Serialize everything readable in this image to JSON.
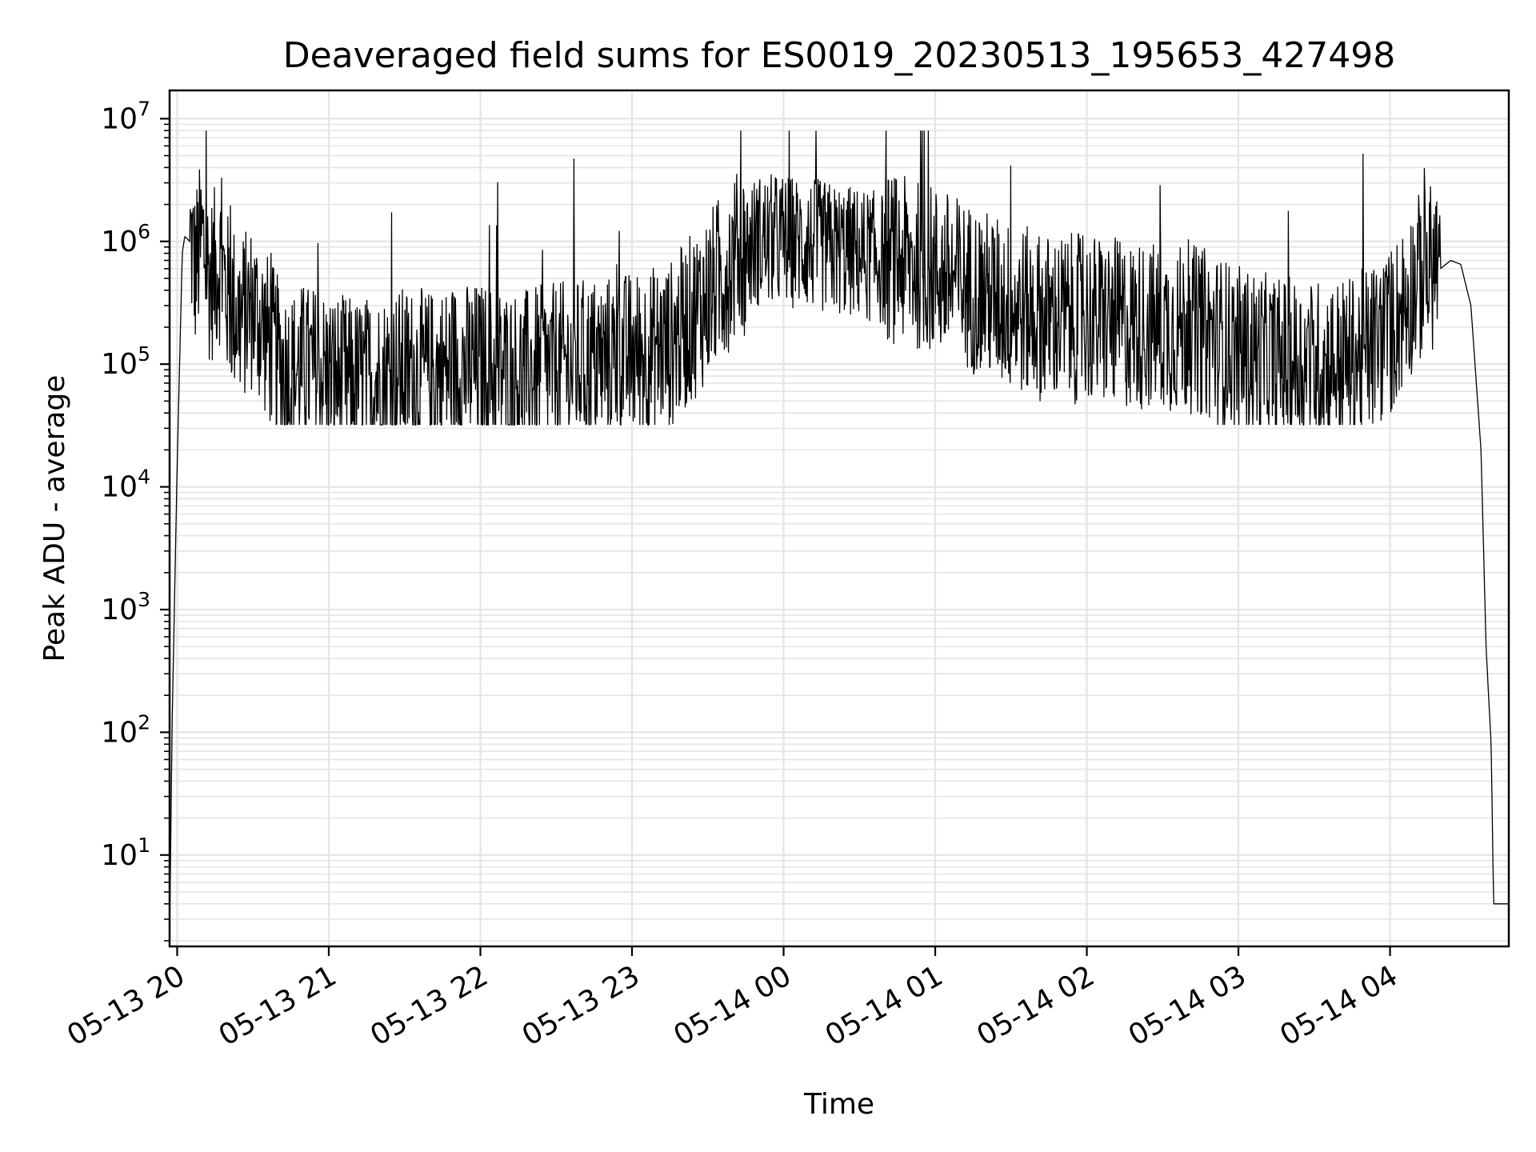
{
  "chart_data": {
    "type": "line",
    "title": "Deaveraged field sums for ES0019_20230513_195653_427498",
    "xlabel": "Time",
    "ylabel": "Peak ADU - average",
    "yscale": "log",
    "ylim": [
      1.8,
      17000000
    ],
    "xlim": [
      "2023-05-13 19:57",
      "2023-05-14 04:47"
    ],
    "grid": true,
    "line_color": "#000000",
    "x_ticks": [
      "05-13 20",
      "05-13 21",
      "05-13 22",
      "05-13 23",
      "05-14 00",
      "05-14 01",
      "05-14 02",
      "05-14 03",
      "05-14 04"
    ],
    "y_ticks": [
      {
        "base": "10",
        "exp": "1"
      },
      {
        "base": "10",
        "exp": "2"
      },
      {
        "base": "10",
        "exp": "3"
      },
      {
        "base": "10",
        "exp": "4"
      },
      {
        "base": "10",
        "exp": "5"
      },
      {
        "base": "10",
        "exp": "6"
      },
      {
        "base": "10",
        "exp": "7"
      }
    ],
    "series": [
      {
        "values_note_free": true,
        "x": [
          "2023-05-13 19:57",
          "2023-05-13 19:58",
          "2023-05-13 20:00",
          "2023-05-13 20:02",
          "2023-05-13 20:03",
          "2023-05-13 20:05",
          "2023-05-13 20:07",
          "2023-05-13 20:10",
          "2023-05-13 20:13",
          "2023-05-13 20:17",
          "2023-05-13 20:20",
          "2023-05-13 20:25",
          "2023-05-13 20:30",
          "2023-05-13 20:35",
          "2023-05-13 20:40",
          "2023-05-13 20:45",
          "2023-05-13 20:50",
          "2023-05-13 21:00",
          "2023-05-13 21:10",
          "2023-05-13 21:20",
          "2023-05-13 21:30",
          "2023-05-13 21:40",
          "2023-05-13 21:50",
          "2023-05-13 22:00",
          "2023-05-13 22:15",
          "2023-05-13 22:30",
          "2023-05-13 22:45",
          "2023-05-13 22:55",
          "2023-05-13 23:00",
          "2023-05-13 23:15",
          "2023-05-13 23:30",
          "2023-05-13 23:40",
          "2023-05-13 23:50",
          "2023-05-14 00:00",
          "2023-05-14 00:15",
          "2023-05-14 00:30",
          "2023-05-14 00:45",
          "2023-05-14 01:00",
          "2023-05-14 01:15",
          "2023-05-14 01:30",
          "2023-05-14 01:45",
          "2023-05-14 02:00",
          "2023-05-14 02:15",
          "2023-05-14 02:30",
          "2023-05-14 02:45",
          "2023-05-14 03:00",
          "2023-05-14 03:15",
          "2023-05-14 03:30",
          "2023-05-14 03:45",
          "2023-05-14 04:00",
          "2023-05-14 04:10",
          "2023-05-14 04:20",
          "2023-05-14 04:24",
          "2023-05-14 04:28",
          "2023-05-14 04:32",
          "2023-05-14 04:36",
          "2023-05-14 04:38",
          "2023-05-14 04:40",
          "2023-05-14 04:41",
          "2023-05-14 04:42",
          "2023-05-14 04:47"
        ],
        "y": [
          2,
          120,
          15000,
          800000,
          1100000,
          1000000,
          500000,
          900000,
          400000,
          600000,
          300000,
          200000,
          250000,
          150000,
          90000,
          70000,
          80000,
          70000,
          60000,
          65000,
          75000,
          70000,
          80000,
          80000,
          70000,
          80000,
          90000,
          95000,
          100000,
          120000,
          300000,
          600000,
          900000,
          900000,
          800000,
          700000,
          600000,
          500000,
          350000,
          250000,
          200000,
          200000,
          180000,
          170000,
          160000,
          110000,
          90000,
          85000,
          90000,
          150000,
          400000,
          600000,
          700000,
          650000,
          300000,
          20000,
          500,
          80,
          4,
          4,
          4
        ]
      }
    ]
  }
}
